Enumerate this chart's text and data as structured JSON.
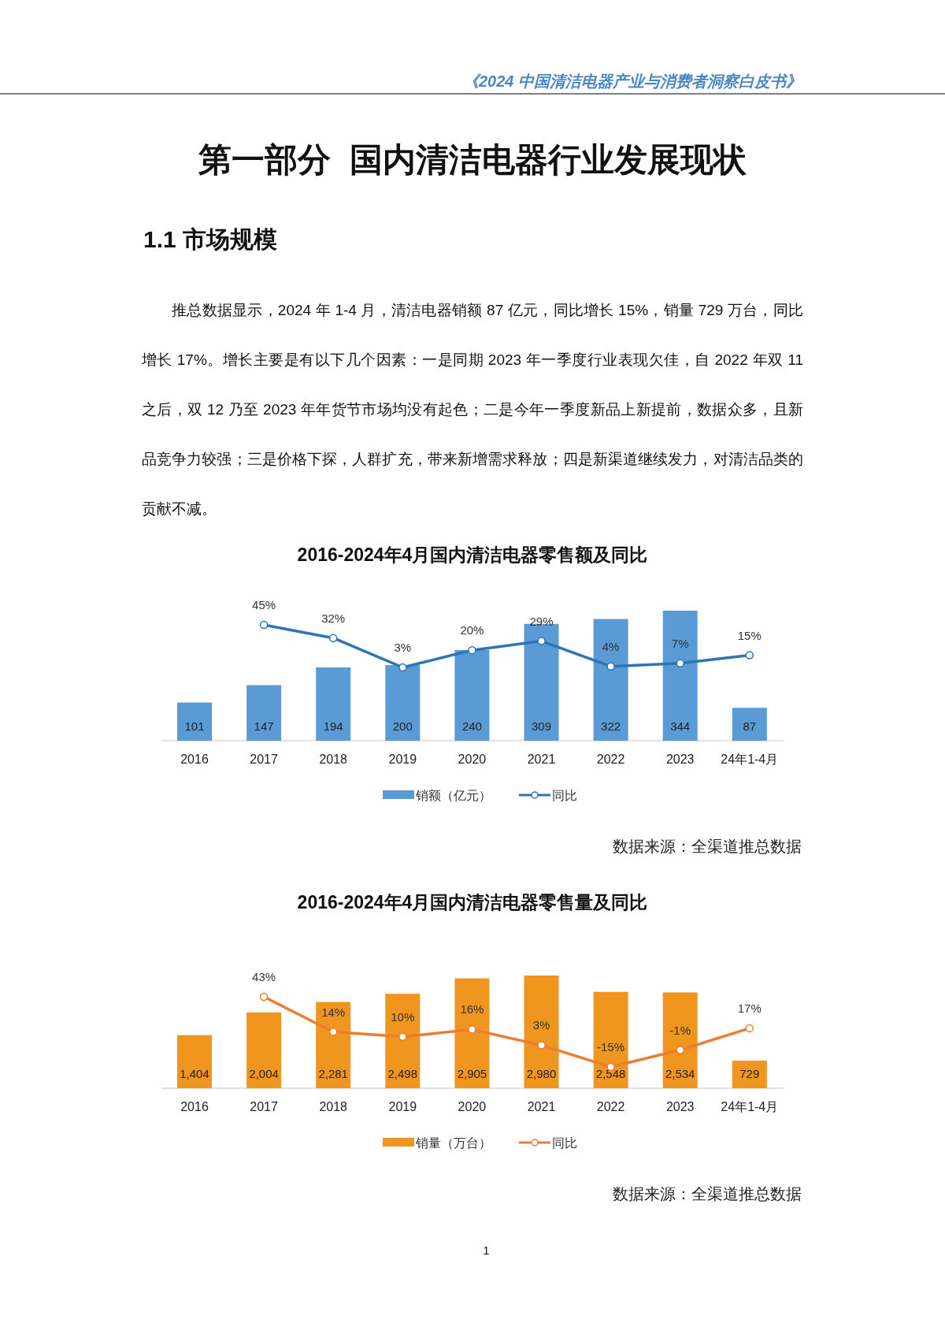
{
  "chart_data": [
    {
      "type": "other",
      "title": "第一部分  国内清洁电器行业发展现状",
      "subtitle": "1.1 市场规模",
      "annotations": [
        "《2024 中国清洁电器产业与消费者洞察白皮书》",
        "推总数据显示，2024 年 1-4 月，清洁电器销额 87 亿元，同比增长 15%，销量 729 万台，同比增长 17%。增长主要是有以下几个因素：一是同期 2023 年一季度行业表现欠佳，自 2022 年双 11 之后，双 12 乃至 2023 年年货节市场均没有起色；二是今年一季度新品上新提前，数据众多，且新品竞争力较强；三是价格下探，人群扩充，带来新增需求释放；四是新渠道继续发力，对清洁品类的贡献不减。",
        "1"
      ]
    },
    {
      "type": "bar",
      "title": "2016-2024年4月国内清洁电器零售额及同比",
      "categories": [
        "2016",
        "2017",
        "2018",
        "2019",
        "2020",
        "2021",
        "2022",
        "2023",
        "24年1-4月"
      ],
      "legend": "bottom",
      "grid": false,
      "annotations": [
        "数据来源：全渠道推总数据"
      ],
      "series": [
        {
          "name": "销额（亿元）",
          "color": "#5b9bd5",
          "values": [
            101,
            147,
            194,
            200,
            240,
            309,
            322,
            344,
            87
          ],
          "value_labels": [
            "101",
            "147",
            "194",
            "200",
            "240",
            "309",
            "322",
            "344",
            "87"
          ]
        },
        {
          "name": "同比",
          "type": "line",
          "axis": "y2",
          "marker": "circle",
          "color": "#2e75b6",
          "values": [
            null,
            45,
            32,
            3,
            20,
            29,
            4,
            7,
            15
          ],
          "value_labels": [
            null,
            "45%",
            "32%",
            "3%",
            "20%",
            "29%",
            "4%",
            "7%",
            "15%"
          ]
        }
      ]
    },
    {
      "type": "bar",
      "title": "2016-2024年4月国内清洁电器零售量及同比",
      "categories": [
        "2016",
        "2017",
        "2018",
        "2019",
        "2020",
        "2021",
        "2022",
        "2023",
        "24年1-4月"
      ],
      "legend": "bottom",
      "grid": false,
      "annotations": [
        "数据来源：全渠道推总数据"
      ],
      "series": [
        {
          "name": "销量（万台）",
          "color": "#f0961e",
          "values": [
            1404,
            2004,
            2281,
            2498,
            2905,
            2980,
            2548,
            2534,
            729
          ],
          "value_labels": [
            "1,404",
            "2,004",
            "2,281",
            "2,498",
            "2,905",
            "2,980",
            "2,548",
            "2,534",
            "729"
          ]
        },
        {
          "name": "同比",
          "type": "line",
          "axis": "y2",
          "marker": "circle",
          "color": "#ed7d31",
          "values": [
            null,
            43,
            14,
            10,
            16,
            3,
            -15,
            -1,
            17
          ],
          "value_labels": [
            null,
            "43%",
            "14%",
            "10%",
            "16%",
            "3%",
            "-15%",
            "-1%",
            "17%"
          ]
        }
      ]
    }
  ]
}
